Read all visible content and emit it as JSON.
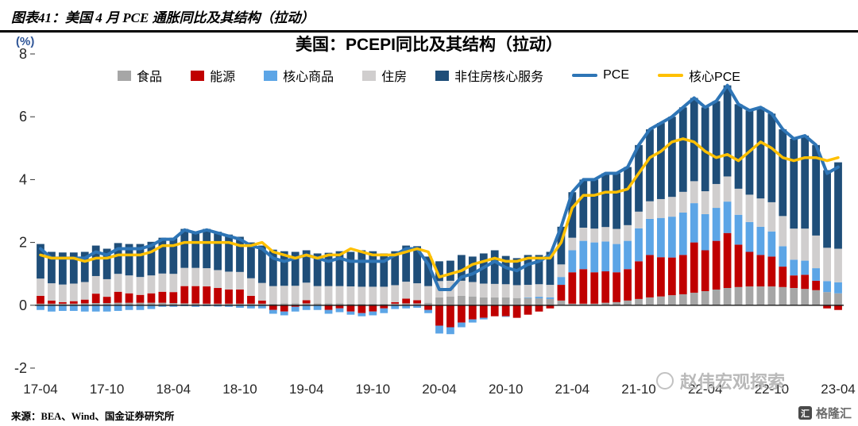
{
  "header": {
    "title": "图表41：美国 4 月 PCE 通胀同比及其结构（拉动）"
  },
  "chart": {
    "title": "美国：PCEPI同比及其结构（拉动）",
    "unit_label": "(%)"
  },
  "footer": {
    "source": "来源：BEA、Wind、国金证券研究所"
  },
  "watermark": {
    "text": "赵伟宏观探索"
  },
  "logo": {
    "text": "格隆汇",
    "icon_text": "汇"
  },
  "chart_data": {
    "type": "bar",
    "stacked": true,
    "title": "美国：PCEPI同比及其结构（拉动）",
    "xlabel": "",
    "ylabel": "(%)",
    "ylim": [
      -2,
      8
    ],
    "yticks": [
      8,
      6,
      4,
      2,
      0,
      -2
    ],
    "xtick_every": 6,
    "grid": false,
    "legend_position": "top",
    "x": [
      "17-04",
      "17-05",
      "17-06",
      "17-07",
      "17-08",
      "17-09",
      "17-10",
      "17-11",
      "17-12",
      "18-01",
      "18-02",
      "18-03",
      "18-04",
      "18-05",
      "18-06",
      "18-07",
      "18-08",
      "18-09",
      "18-10",
      "18-11",
      "18-12",
      "19-01",
      "19-02",
      "19-03",
      "19-04",
      "19-05",
      "19-06",
      "19-07",
      "19-08",
      "19-09",
      "19-10",
      "19-11",
      "19-12",
      "20-01",
      "20-02",
      "20-03",
      "20-04",
      "20-05",
      "20-06",
      "20-07",
      "20-08",
      "20-09",
      "20-10",
      "20-11",
      "20-12",
      "21-01",
      "21-02",
      "21-03",
      "21-04",
      "21-05",
      "21-06",
      "21-07",
      "21-08",
      "21-09",
      "21-10",
      "21-11",
      "21-12",
      "22-01",
      "22-02",
      "22-03",
      "22-04",
      "22-05",
      "22-06",
      "22-07",
      "22-08",
      "22-09",
      "22-10",
      "22-11",
      "22-12",
      "23-01",
      "23-02",
      "23-03",
      "23-04"
    ],
    "series": [
      {
        "id": "food",
        "name": "食品",
        "type": "bar",
        "color": "#A6A6A6",
        "values": [
          0.05,
          0.05,
          0.05,
          0.05,
          0.06,
          0.07,
          0.07,
          0.08,
          0.08,
          0.08,
          0.08,
          0.08,
          0.07,
          0.06,
          0.06,
          0.05,
          0.05,
          0.05,
          0.05,
          0.05,
          0.05,
          0.05,
          0.06,
          0.06,
          0.06,
          0.06,
          0.06,
          0.06,
          0.05,
          0.05,
          0.05,
          0.05,
          0.05,
          0.06,
          0.06,
          0.08,
          0.25,
          0.28,
          0.3,
          0.28,
          0.25,
          0.25,
          0.25,
          0.23,
          0.23,
          0.22,
          0.2,
          0.15,
          0.05,
          0.05,
          0.05,
          0.08,
          0.1,
          0.15,
          0.2,
          0.25,
          0.28,
          0.32,
          0.35,
          0.4,
          0.45,
          0.5,
          0.55,
          0.58,
          0.6,
          0.6,
          0.6,
          0.58,
          0.55,
          0.52,
          0.48,
          0.42,
          0.38
        ]
      },
      {
        "id": "energy",
        "name": "能源",
        "type": "bar",
        "color": "#C00000",
        "values": [
          0.25,
          0.1,
          0.05,
          0.08,
          0.12,
          0.3,
          0.2,
          0.35,
          0.3,
          0.25,
          0.3,
          0.35,
          0.35,
          0.55,
          0.55,
          0.55,
          0.5,
          0.45,
          0.45,
          0.25,
          0.1,
          -0.15,
          -0.2,
          -0.05,
          0.1,
          0.0,
          -0.15,
          -0.1,
          -0.2,
          -0.25,
          -0.2,
          -0.1,
          0.05,
          0.15,
          0.1,
          -0.15,
          -0.65,
          -0.7,
          -0.55,
          -0.45,
          -0.4,
          -0.35,
          -0.35,
          -0.4,
          -0.3,
          -0.2,
          -0.1,
          0.5,
          1.0,
          1.1,
          1.0,
          1.0,
          0.95,
          1.0,
          1.2,
          1.35,
          1.25,
          1.2,
          1.25,
          1.6,
          1.3,
          1.55,
          1.75,
          1.35,
          1.1,
          1.0,
          0.95,
          0.65,
          0.4,
          0.45,
          0.3,
          -0.1,
          -0.15
        ]
      },
      {
        "id": "core-goods",
        "name": "核心商品",
        "type": "bar",
        "color": "#5CA5E6",
        "values": [
          -0.15,
          -0.2,
          -0.18,
          -0.18,
          -0.2,
          -0.2,
          -0.2,
          -0.18,
          -0.15,
          -0.15,
          -0.12,
          -0.05,
          -0.05,
          -0.03,
          -0.05,
          -0.03,
          -0.04,
          -0.05,
          -0.08,
          -0.1,
          -0.1,
          -0.12,
          -0.12,
          -0.15,
          -0.15,
          -0.15,
          -0.12,
          -0.12,
          -0.1,
          -0.1,
          -0.12,
          -0.15,
          -0.12,
          -0.1,
          -0.08,
          -0.1,
          -0.25,
          -0.22,
          -0.15,
          -0.1,
          -0.05,
          0.0,
          -0.02,
          0.0,
          0.02,
          0.05,
          0.05,
          0.25,
          0.7,
          0.9,
          0.95,
          0.95,
          0.9,
          0.9,
          1.05,
          1.15,
          1.25,
          1.3,
          1.35,
          1.25,
          1.15,
          1.05,
          1.0,
          0.95,
          0.95,
          0.9,
          0.8,
          0.65,
          0.5,
          0.45,
          0.4,
          0.35,
          0.35
        ]
      },
      {
        "id": "housing",
        "name": "住房",
        "type": "bar",
        "color": "#D0CECE",
        "values": [
          0.55,
          0.55,
          0.56,
          0.56,
          0.56,
          0.56,
          0.56,
          0.57,
          0.57,
          0.57,
          0.57,
          0.58,
          0.58,
          0.58,
          0.58,
          0.58,
          0.57,
          0.57,
          0.56,
          0.56,
          0.56,
          0.56,
          0.56,
          0.56,
          0.56,
          0.55,
          0.55,
          0.55,
          0.55,
          0.54,
          0.54,
          0.54,
          0.54,
          0.54,
          0.54,
          0.53,
          0.52,
          0.5,
          0.48,
          0.46,
          0.44,
          0.43,
          0.42,
          0.41,
          0.4,
          0.4,
          0.4,
          0.4,
          0.4,
          0.42,
          0.44,
          0.46,
          0.48,
          0.5,
          0.53,
          0.56,
          0.6,
          0.63,
          0.66,
          0.7,
          0.73,
          0.76,
          0.8,
          0.83,
          0.87,
          0.9,
          0.93,
          0.96,
          0.99,
          1.02,
          1.04,
          1.06,
          1.07
        ]
      },
      {
        "id": "core-services-ex-housing",
        "name": "非住房核心服务",
        "type": "bar",
        "color": "#1F4E79",
        "values": [
          1.1,
          1.0,
          1.02,
          0.99,
          0.96,
          0.97,
          0.97,
          0.98,
          1.0,
          1.05,
          1.07,
          1.14,
          1.15,
          1.24,
          1.16,
          1.25,
          1.22,
          1.18,
          1.12,
          1.14,
          1.19,
          1.16,
          1.1,
          1.08,
          1.03,
          1.04,
          1.06,
          1.11,
          1.1,
          1.16,
          1.13,
          1.06,
          1.08,
          1.15,
          1.18,
          0.94,
          0.63,
          0.64,
          0.82,
          0.81,
          0.96,
          1.07,
          0.9,
          0.86,
          0.95,
          0.93,
          1.05,
          1.2,
          1.45,
          1.53,
          1.56,
          1.71,
          1.77,
          1.85,
          2.12,
          2.29,
          2.42,
          2.55,
          2.69,
          2.65,
          2.67,
          2.64,
          2.9,
          2.69,
          2.68,
          2.9,
          2.82,
          2.76,
          2.86,
          2.96,
          2.88,
          2.47,
          2.75
        ]
      },
      {
        "id": "pce",
        "name": "PCE",
        "type": "line",
        "color": "#2E75B6",
        "width": 4,
        "values": [
          1.8,
          1.5,
          1.5,
          1.5,
          1.5,
          1.7,
          1.6,
          1.8,
          1.8,
          1.8,
          1.9,
          2.1,
          2.1,
          2.4,
          2.3,
          2.4,
          2.3,
          2.2,
          2.1,
          1.9,
          1.8,
          1.5,
          1.4,
          1.5,
          1.6,
          1.5,
          1.4,
          1.5,
          1.4,
          1.4,
          1.4,
          1.4,
          1.6,
          1.8,
          1.8,
          1.3,
          0.5,
          0.5,
          0.9,
          1.0,
          1.2,
          1.4,
          1.2,
          1.1,
          1.3,
          1.4,
          1.6,
          2.5,
          3.6,
          4.0,
          4.0,
          4.2,
          4.2,
          4.4,
          5.1,
          5.6,
          5.8,
          6.0,
          6.3,
          6.6,
          6.3,
          6.5,
          7.0,
          6.4,
          6.2,
          6.3,
          6.1,
          5.6,
          5.3,
          5.4,
          5.1,
          4.2,
          4.4
        ]
      },
      {
        "id": "core-pce",
        "name": "核心PCE",
        "type": "line",
        "color": "#FFC000",
        "width": 3.5,
        "values": [
          1.6,
          1.5,
          1.5,
          1.5,
          1.4,
          1.5,
          1.5,
          1.6,
          1.6,
          1.6,
          1.7,
          1.9,
          1.9,
          2.0,
          2.0,
          2.0,
          2.0,
          2.0,
          1.9,
          1.9,
          2.0,
          1.7,
          1.6,
          1.5,
          1.6,
          1.5,
          1.6,
          1.6,
          1.8,
          1.7,
          1.6,
          1.6,
          1.6,
          1.7,
          1.8,
          1.7,
          0.9,
          1.0,
          1.1,
          1.3,
          1.4,
          1.5,
          1.4,
          1.4,
          1.5,
          1.5,
          1.5,
          2.0,
          3.1,
          3.5,
          3.5,
          3.6,
          3.6,
          3.7,
          4.2,
          4.7,
          4.9,
          5.2,
          5.3,
          5.2,
          4.9,
          4.7,
          4.8,
          4.6,
          4.9,
          5.2,
          5.0,
          4.7,
          4.6,
          4.7,
          4.7,
          4.6,
          4.7
        ]
      }
    ]
  }
}
